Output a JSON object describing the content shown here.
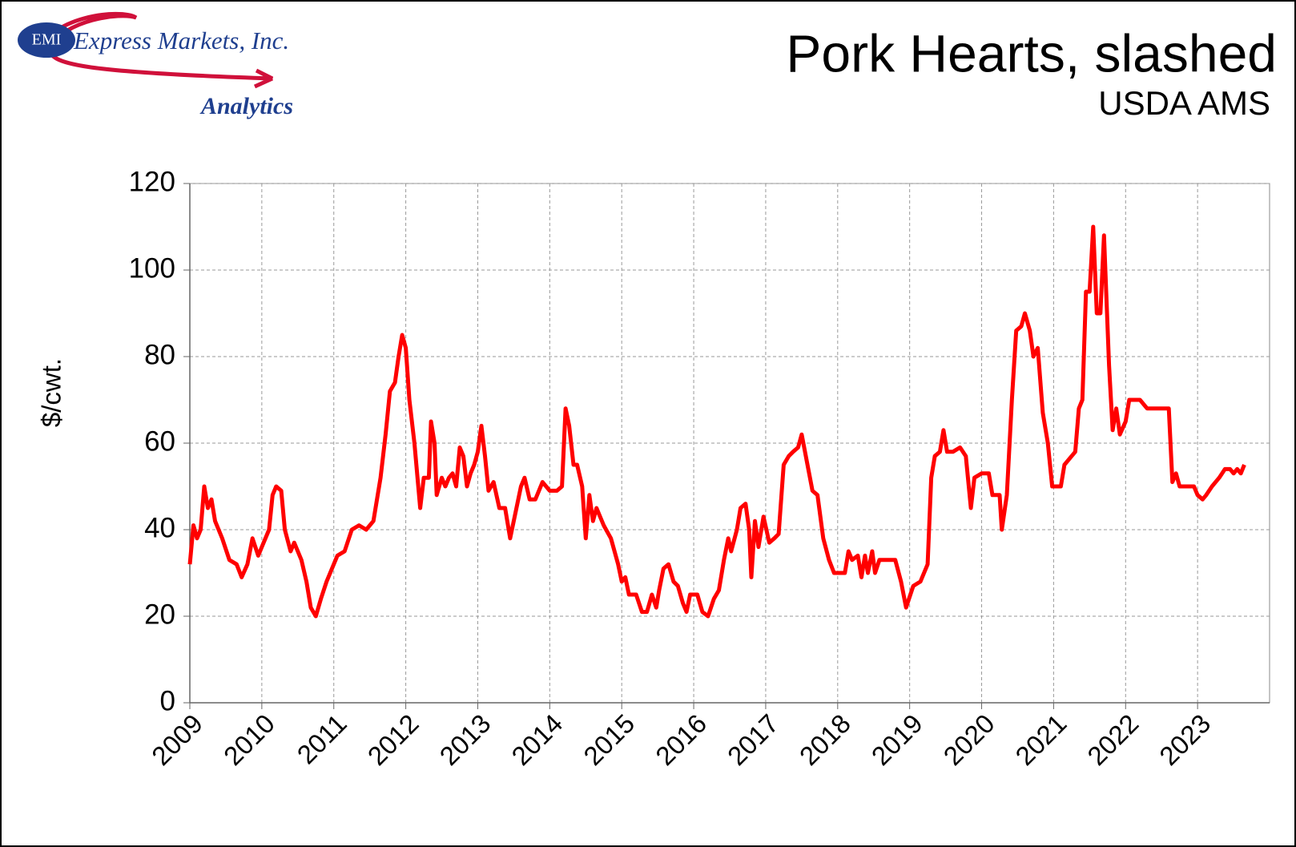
{
  "logo": {
    "badge": "EMI",
    "name": "Express Markets, Inc.",
    "tagline": "Analytics"
  },
  "chart_data": {
    "type": "line",
    "title": "Pork Hearts,  slashed",
    "subtitle": "USDA AMS",
    "y_label": "$/cwt.",
    "color": "#ff0000",
    "grid": true,
    "xlim": [
      2009,
      2024
    ],
    "xticks": [
      2009,
      2010,
      2011,
      2012,
      2013,
      2014,
      2015,
      2016,
      2017,
      2018,
      2019,
      2020,
      2021,
      2022,
      2023
    ],
    "ylim": [
      0,
      120
    ],
    "yticks": [
      0,
      20,
      40,
      60,
      80,
      100,
      120
    ],
    "x": [
      2009.0,
      2009.05,
      2009.1,
      2009.15,
      2009.2,
      2009.25,
      2009.3,
      2009.35,
      2009.45,
      2009.55,
      2009.65,
      2009.72,
      2009.8,
      2009.87,
      2009.95,
      2010.0,
      2010.1,
      2010.15,
      2010.2,
      2010.27,
      2010.32,
      2010.4,
      2010.45,
      2010.55,
      2010.62,
      2010.68,
      2010.75,
      2010.82,
      2010.9,
      2011.0,
      2011.05,
      2011.15,
      2011.25,
      2011.35,
      2011.45,
      2011.55,
      2011.65,
      2011.72,
      2011.78,
      2011.85,
      2011.9,
      2011.95,
      2012.0,
      2012.05,
      2012.12,
      2012.2,
      2012.25,
      2012.32,
      2012.35,
      2012.4,
      2012.43,
      2012.5,
      2012.55,
      2012.6,
      2012.65,
      2012.7,
      2012.75,
      2012.8,
      2012.85,
      2012.9,
      2012.95,
      2013.0,
      2013.05,
      2013.1,
      2013.15,
      2013.22,
      2013.3,
      2013.38,
      2013.45,
      2013.55,
      2013.6,
      2013.65,
      2013.72,
      2013.8,
      2013.9,
      2014.0,
      2014.1,
      2014.17,
      2014.22,
      2014.27,
      2014.33,
      2014.38,
      2014.45,
      2014.5,
      2014.55,
      2014.6,
      2014.65,
      2014.75,
      2014.85,
      2014.95,
      2015.0,
      2015.05,
      2015.1,
      2015.2,
      2015.28,
      2015.35,
      2015.42,
      2015.48,
      2015.52,
      2015.58,
      2015.65,
      2015.72,
      2015.78,
      2015.85,
      2015.9,
      2015.95,
      2016.05,
      2016.12,
      2016.2,
      2016.28,
      2016.35,
      2016.42,
      2016.48,
      2016.52,
      2016.6,
      2016.65,
      2016.72,
      2016.77,
      2016.8,
      2016.85,
      2016.9,
      2016.97,
      2017.05,
      2017.12,
      2017.18,
      2017.25,
      2017.32,
      2017.38,
      2017.45,
      2017.5,
      2017.58,
      2017.65,
      2017.72,
      2017.8,
      2017.88,
      2017.95,
      2018.1,
      2018.15,
      2018.2,
      2018.28,
      2018.33,
      2018.38,
      2018.42,
      2018.48,
      2018.52,
      2018.58,
      2018.8,
      2018.88,
      2018.95,
      2019.05,
      2019.15,
      2019.25,
      2019.3,
      2019.35,
      2019.42,
      2019.47,
      2019.52,
      2019.6,
      2019.7,
      2019.78,
      2019.85,
      2019.9,
      2020.0,
      2020.1,
      2020.15,
      2020.25,
      2020.28,
      2020.35,
      2020.42,
      2020.48,
      2020.55,
      2020.6,
      2020.67,
      2020.72,
      2020.78,
      2020.85,
      2020.92,
      2020.98,
      2021.1,
      2021.15,
      2021.25,
      2021.3,
      2021.35,
      2021.4,
      2021.45,
      2021.5,
      2021.55,
      2021.6,
      2021.65,
      2021.7,
      2021.77,
      2021.82,
      2021.87,
      2021.92,
      2022.0,
      2022.05,
      2022.2,
      2022.3,
      2022.6,
      2022.65,
      2022.7,
      2022.75,
      2022.85,
      2022.95,
      2023.0,
      2023.07,
      2023.12,
      2023.2,
      2023.3,
      2023.38,
      2023.45,
      2023.5,
      2023.55,
      2023.6,
      2023.65
    ],
    "values": [
      32,
      41,
      38,
      40,
      50,
      45,
      47,
      42,
      38,
      33,
      32,
      29,
      32,
      38,
      34,
      36,
      40,
      48,
      50,
      49,
      40,
      35,
      37,
      33,
      28,
      22,
      20,
      24,
      28,
      32,
      34,
      35,
      40,
      41,
      40,
      42,
      52,
      62,
      72,
      74,
      80,
      85,
      82,
      70,
      60,
      45,
      52,
      52,
      65,
      60,
      48,
      52,
      50,
      52,
      53,
      50,
      59,
      57,
      50,
      53,
      55,
      58,
      64,
      57,
      49,
      51,
      45,
      45,
      38,
      46,
      50,
      52,
      47,
      47,
      51,
      49,
      49,
      50,
      68,
      64,
      55,
      55,
      50,
      38,
      48,
      42,
      45,
      41,
      38,
      32,
      28,
      29,
      25,
      25,
      21,
      21,
      25,
      22,
      26,
      31,
      32,
      28,
      27,
      23,
      21,
      25,
      25,
      21,
      20,
      24,
      26,
      33,
      38,
      35,
      40,
      45,
      46,
      40,
      29,
      42,
      36,
      43,
      37,
      38,
      39,
      55,
      57,
      58,
      59,
      62,
      55,
      49,
      48,
      38,
      33,
      30,
      30,
      35,
      33,
      34,
      29,
      34,
      30,
      35,
      30,
      33,
      33,
      28,
      22,
      27,
      28,
      32,
      52,
      57,
      58,
      63,
      58,
      58,
      59,
      57,
      45,
      52,
      53,
      53,
      48,
      48,
      40,
      48,
      70,
      86,
      87,
      90,
      86,
      80,
      82,
      67,
      60,
      50,
      50,
      55,
      57,
      58,
      68,
      70,
      95,
      95,
      110,
      90,
      90,
      108,
      78,
      63,
      68,
      62,
      65,
      70,
      70,
      68,
      68,
      51,
      53,
      50,
      50,
      50,
      48,
      47,
      48,
      50,
      52,
      54,
      54,
      53,
      54,
      53,
      55
    ]
  }
}
